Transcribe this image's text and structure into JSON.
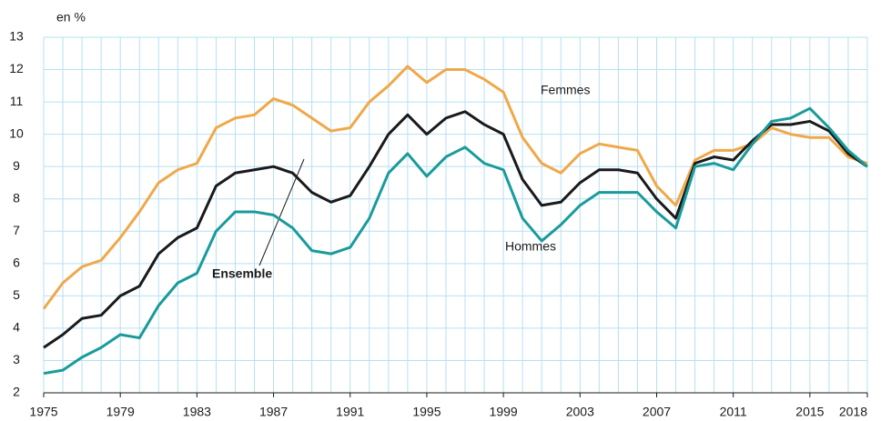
{
  "chart_data": {
    "type": "line",
    "y_unit_label": "en %",
    "x": [
      1975,
      1976,
      1977,
      1978,
      1979,
      1980,
      1981,
      1982,
      1983,
      1984,
      1985,
      1986,
      1987,
      1988,
      1989,
      1990,
      1991,
      1992,
      1993,
      1994,
      1995,
      1996,
      1997,
      1998,
      1999,
      2000,
      2001,
      2002,
      2003,
      2004,
      2005,
      2006,
      2007,
      2008,
      2009,
      2010,
      2011,
      2012,
      2013,
      2014,
      2015,
      2016,
      2017,
      2018
    ],
    "xlim": [
      1975,
      2018
    ],
    "xticks": [
      1975,
      1979,
      1983,
      1987,
      1991,
      1995,
      1999,
      2003,
      2007,
      2011,
      2015,
      2018
    ],
    "ylim": [
      2,
      13
    ],
    "yticks": [
      2,
      3,
      4,
      5,
      6,
      7,
      8,
      9,
      10,
      11,
      12,
      13
    ],
    "grid": true,
    "series": [
      {
        "name": "Femmes",
        "color": "#f0a848",
        "values": [
          4.6,
          5.4,
          5.9,
          6.1,
          6.8,
          7.6,
          8.5,
          8.9,
          9.1,
          10.2,
          10.5,
          10.6,
          11.1,
          10.9,
          10.5,
          10.1,
          10.2,
          11.0,
          11.5,
          12.1,
          11.6,
          12.0,
          12.0,
          11.7,
          11.3,
          9.9,
          9.1,
          8.8,
          9.4,
          9.7,
          9.6,
          9.5,
          8.4,
          7.8,
          9.2,
          9.5,
          9.5,
          9.7,
          10.2,
          10.0,
          9.9,
          9.9,
          9.3,
          9.1
        ]
      },
      {
        "name": "Ensemble",
        "color": "#1a1a1a",
        "values": [
          3.4,
          3.8,
          4.3,
          4.4,
          5.0,
          5.3,
          6.3,
          6.8,
          7.1,
          8.4,
          8.8,
          8.9,
          9.0,
          8.8,
          8.2,
          7.9,
          8.1,
          9.0,
          10.0,
          10.6,
          10.0,
          10.5,
          10.7,
          10.3,
          10.0,
          8.6,
          7.8,
          7.9,
          8.5,
          8.9,
          8.9,
          8.8,
          8.0,
          7.4,
          9.1,
          9.3,
          9.2,
          9.8,
          10.3,
          10.3,
          10.4,
          10.1,
          9.4,
          9.0
        ]
      },
      {
        "name": "Hommes",
        "color": "#1a9b9b",
        "values": [
          2.6,
          2.7,
          3.1,
          3.4,
          3.8,
          3.7,
          4.7,
          5.4,
          5.7,
          7.0,
          7.6,
          7.6,
          7.5,
          7.1,
          6.4,
          6.3,
          6.5,
          7.4,
          8.8,
          9.4,
          8.7,
          9.3,
          9.6,
          9.1,
          8.9,
          7.4,
          6.7,
          7.2,
          7.8,
          8.2,
          8.2,
          8.2,
          7.6,
          7.1,
          9.0,
          9.1,
          8.9,
          9.7,
          10.4,
          10.5,
          10.8,
          10.2,
          9.5,
          9.0
        ]
      }
    ]
  }
}
